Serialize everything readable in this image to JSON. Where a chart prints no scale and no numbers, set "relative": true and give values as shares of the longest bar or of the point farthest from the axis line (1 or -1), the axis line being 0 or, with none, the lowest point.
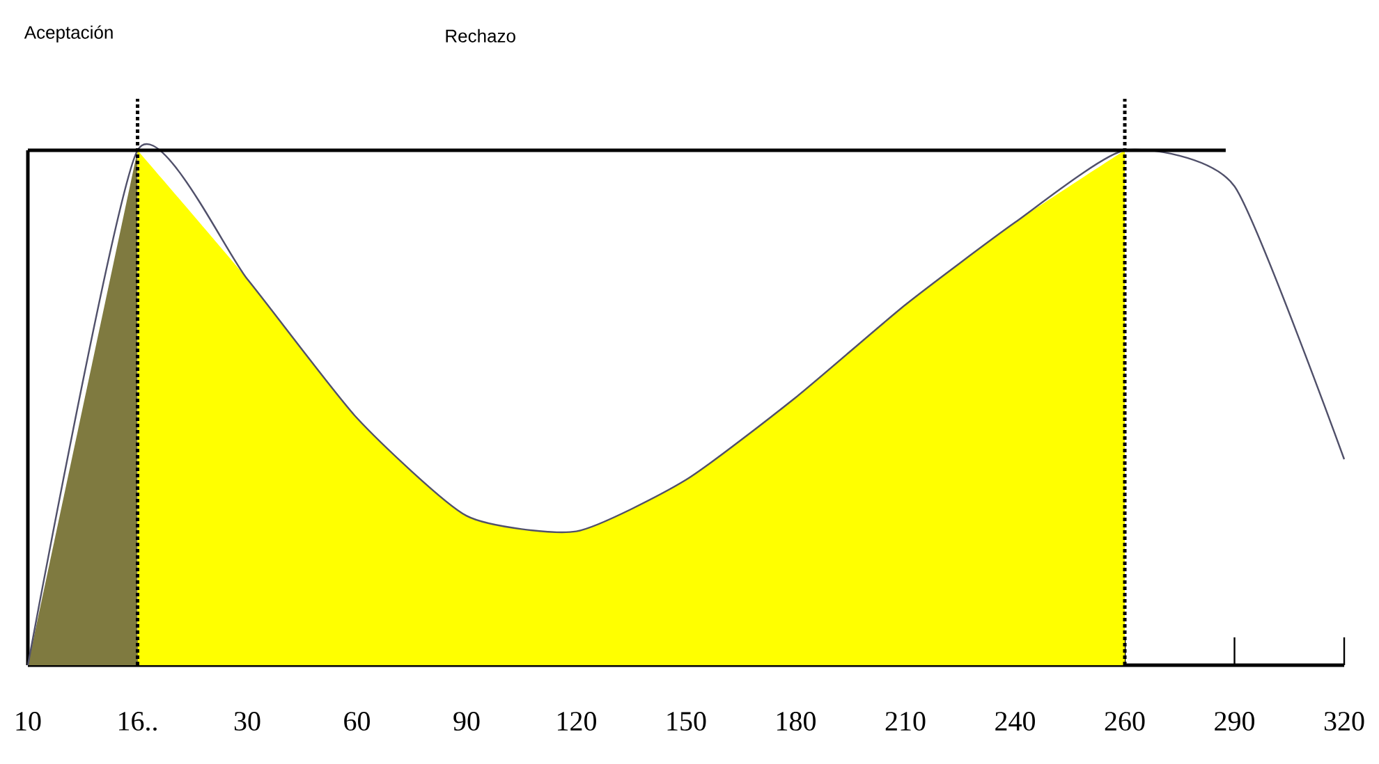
{
  "chart_data": {
    "type": "line",
    "relative": true,
    "categories": [
      "10",
      "16..",
      "30",
      "60",
      "90",
      "120",
      "150",
      "180",
      "210",
      "240",
      "260",
      "290",
      "320"
    ],
    "series": [
      {
        "type": "area",
        "color": "#7f7a40",
        "values": [
          0,
          1,
          null,
          null,
          null,
          null,
          null,
          null,
          null,
          null,
          null,
          null,
          null
        ]
      },
      {
        "type": "area",
        "color": "#ffff00",
        "values": [
          null,
          1,
          0.75,
          0.48,
          0.29,
          0.26,
          0.36,
          0.52,
          0.7,
          0.86,
          1,
          null,
          null
        ]
      },
      {
        "color": "#50506a",
        "values": [
          0,
          1,
          0.75,
          0.48,
          0.29,
          0.26,
          0.36,
          0.52,
          0.7,
          0.86,
          1,
          0.93,
          0.4
        ]
      }
    ],
    "annotations": [
      "Aceptación",
      "Rechazo"
    ],
    "ref_lines": [
      {
        "axis": "y",
        "value": 1,
        "color": "#000000",
        "line_style": "solid"
      },
      {
        "axis": "x",
        "value": "16..",
        "color": "#000000",
        "line_style": "dotted"
      },
      {
        "axis": "x",
        "value": "260",
        "color": "#000000",
        "line_style": "dotted"
      }
    ]
  }
}
